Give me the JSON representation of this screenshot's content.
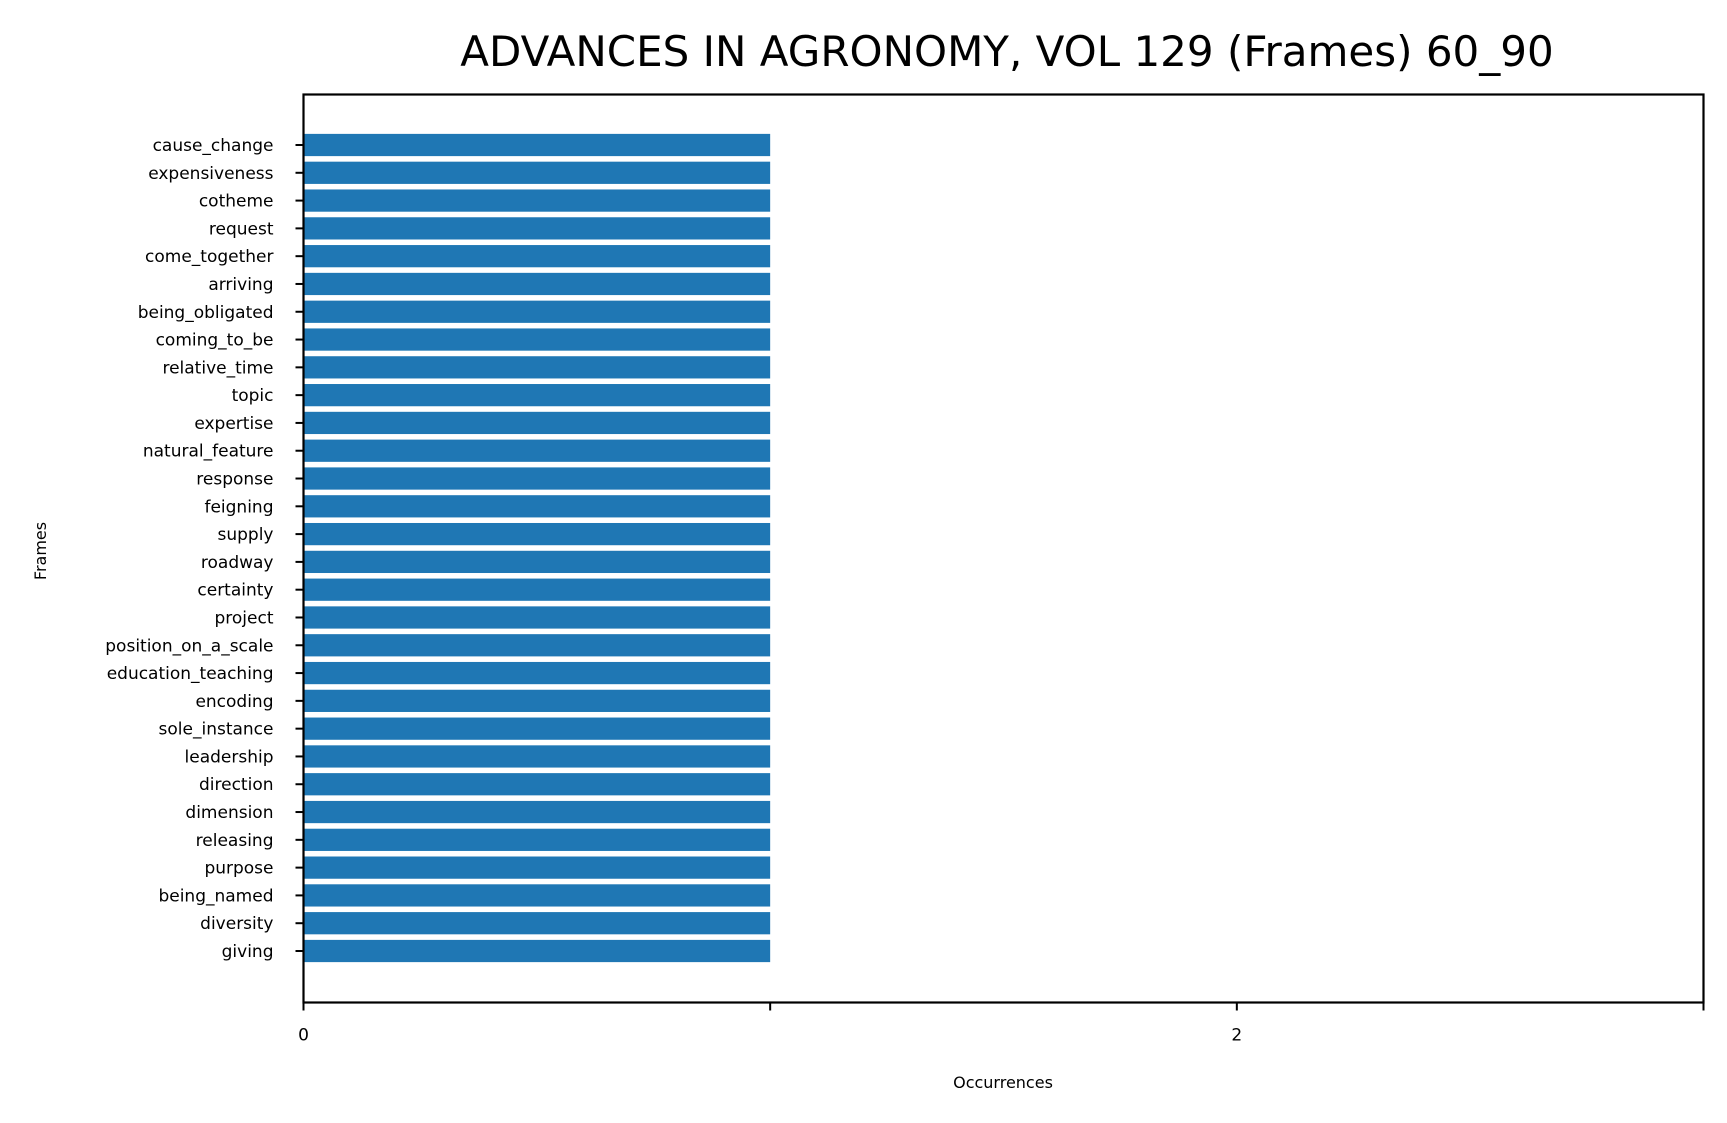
{
  "chart_data": {
    "type": "bar",
    "orientation": "horizontal",
    "title": "ADVANCES IN AGRONOMY, VOL 129 (Frames) 60_90",
    "xlabel": "Occurrences",
    "ylabel": "Frames",
    "xlim": [
      0,
      3
    ],
    "x_ticks": [
      0,
      1,
      2,
      3
    ],
    "x_tick_labels": [
      "0",
      "",
      "2",
      ""
    ],
    "grid": false,
    "bar_color": "#1f77b4",
    "categories": [
      "cause_change",
      "expensiveness",
      "cotheme",
      "request",
      "come_together",
      "arriving",
      "being_obligated",
      "coming_to_be",
      "relative_time",
      "topic",
      "expertise",
      "natural_feature",
      "response",
      "feigning",
      "supply",
      "roadway",
      "certainty",
      "project",
      "position_on_a_scale",
      "education_teaching",
      "encoding",
      "sole_instance",
      "leadership",
      "direction",
      "dimension",
      "releasing",
      "purpose",
      "being_named",
      "diversity",
      "giving"
    ],
    "values": [
      1,
      1,
      1,
      1,
      1,
      1,
      1,
      1,
      1,
      1,
      1,
      1,
      1,
      1,
      1,
      1,
      1,
      1,
      1,
      1,
      1,
      1,
      1,
      1,
      1,
      1,
      1,
      1,
      1,
      1
    ]
  }
}
